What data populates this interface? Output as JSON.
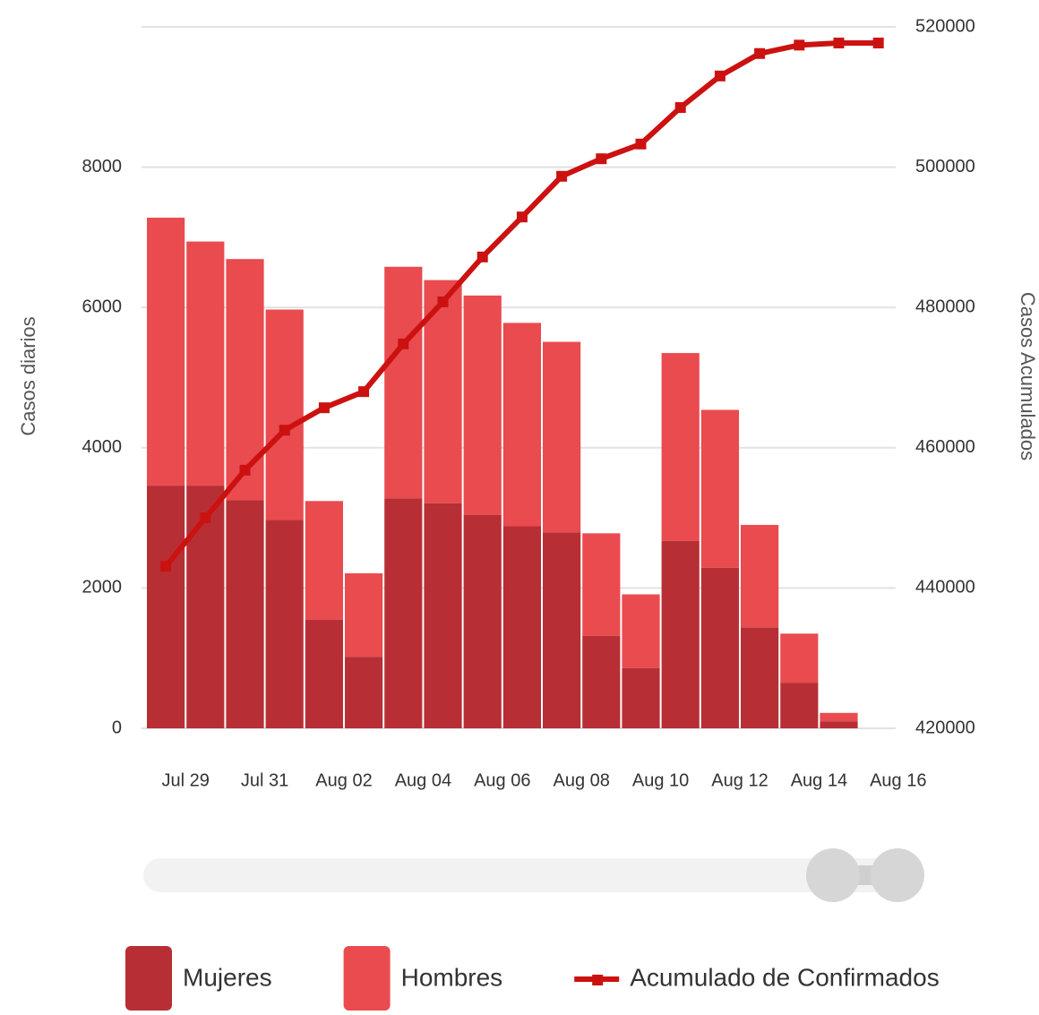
{
  "chart_data": {
    "type": "bar-line",
    "xticks": [
      "Jul 29",
      "Jul 31",
      "Aug 02",
      "Aug 04",
      "Aug 06",
      "Aug 08",
      "Aug 10",
      "Aug 12",
      "Aug 14",
      "Aug 16"
    ],
    "ylabel": "Casos diarios",
    "y2label": "Casos Acumulados",
    "ylim": [
      0,
      10000
    ],
    "yticks": [
      0,
      2000,
      4000,
      6000,
      8000
    ],
    "y2lim": [
      420000,
      520000
    ],
    "y2ticks": [
      420000,
      440000,
      460000,
      480000,
      500000,
      520000
    ],
    "grid": true,
    "stacked": true,
    "legend": "bottom",
    "series": [
      {
        "name": "Mujeres",
        "color": "#b72f34",
        "values": [
          3460,
          3460,
          3250,
          2970,
          1550,
          1020,
          3280,
          3210,
          3040,
          2880,
          2790,
          1320,
          860,
          2670,
          2290,
          1440,
          650,
          100,
          0
        ]
      },
      {
        "name": "Hombres",
        "color": "#e94b4f",
        "values": [
          3820,
          3480,
          3440,
          3000,
          1690,
          1190,
          3300,
          3180,
          3130,
          2900,
          2720,
          1460,
          1050,
          2680,
          2250,
          1460,
          700,
          120,
          0
        ]
      },
      {
        "name": "Acumulado de Confirmados",
        "color": "#cc1111",
        "axis": "y2",
        "type": "line",
        "values": [
          443100,
          450000,
          456800,
          462500,
          465700,
          468000,
          474800,
          480800,
          487200,
          492900,
          498700,
          501200,
          503300,
          508500,
          513000,
          516200,
          517400,
          517700,
          517700
        ]
      }
    ]
  }
}
